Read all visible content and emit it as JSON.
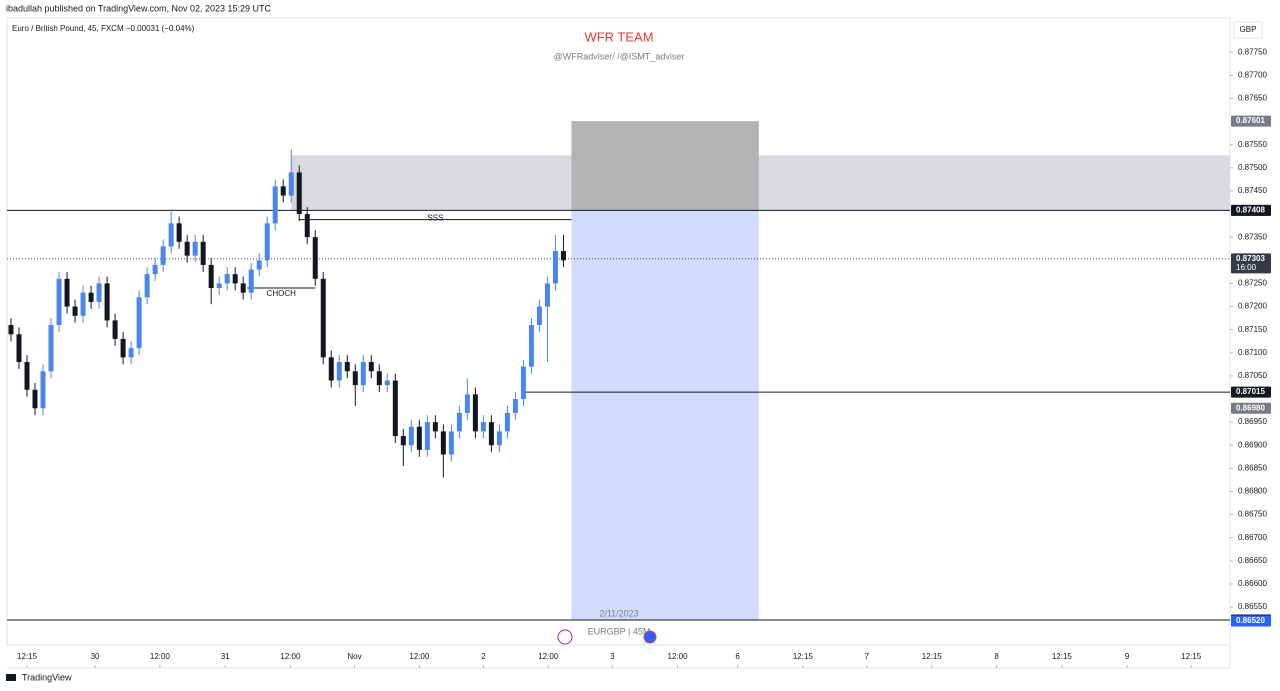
{
  "header": "ibadullah published on TradingView.com, Nov 02, 2023 15:29 UTC",
  "footer": "TradingView",
  "chart_data": {
    "type": "candlestick",
    "symbol": "Euro / British Pound, 45, FXCM  −0.00031 (−0.04%)",
    "title": "WFR TEAM",
    "subtitle": "@WFRadviser/ /@ISMT_adviser",
    "currency": "GBP",
    "up_color": "#4a86e8",
    "down_color": "#131722",
    "xlim": [
      -0.5,
      152.25
    ],
    "ylim": [
      0.86468,
      0.87824
    ],
    "open": [
      0.8716,
      0.8714,
      0.8708,
      0.8702,
      0.8698,
      0.8706,
      0.8716,
      0.8726,
      0.872,
      0.8718,
      0.8723,
      0.8721,
      0.8725,
      0.8717,
      0.8713,
      0.8709,
      0.8711,
      0.8722,
      0.8727,
      0.8729,
      0.8733,
      0.8738,
      0.8734,
      0.8731,
      0.8734,
      0.8729,
      0.8724,
      0.8725,
      0.8727,
      0.8725,
      0.8723,
      0.8728,
      0.873,
      0.8738,
      0.8746,
      0.8744,
      0.8749,
      0.874,
      0.8735,
      0.8726,
      0.8709,
      0.8704,
      0.8708,
      0.8706,
      0.8703,
      0.8708,
      0.8706,
      0.8703,
      0.8704,
      0.8692,
      0.869,
      0.8694,
      0.8689,
      0.8695,
      0.8693,
      0.8688,
      0.8693,
      0.8697,
      0.8701,
      0.8693,
      0.8695,
      0.869,
      0.8693,
      0.8697,
      0.87,
      0.8707,
      0.8716,
      0.872,
      0.8725,
      0.8732
    ],
    "high": [
      0.87175,
      0.87155,
      0.87095,
      0.87035,
      0.87075,
      0.87175,
      0.87275,
      0.87275,
      0.87215,
      0.87245,
      0.87245,
      0.87265,
      0.87265,
      0.87185,
      0.87145,
      0.87125,
      0.87235,
      0.87285,
      0.87305,
      0.87345,
      0.8741,
      0.87395,
      0.87355,
      0.87355,
      0.87355,
      0.87305,
      0.87265,
      0.87285,
      0.87285,
      0.87265,
      0.87295,
      0.87315,
      0.87395,
      0.87475,
      0.87475,
      0.8754,
      0.87505,
      0.87415,
      0.87365,
      0.87275,
      0.87105,
      0.87095,
      0.87095,
      0.87075,
      0.87095,
      0.87095,
      0.87075,
      0.87055,
      0.87055,
      0.86935,
      0.86955,
      0.86955,
      0.86965,
      0.86965,
      0.86945,
      0.86945,
      0.86985,
      0.87045,
      0.87025,
      0.86965,
      0.86965,
      0.86945,
      0.86985,
      0.87015,
      0.87085,
      0.87175,
      0.87215,
      0.87265,
      0.87355,
      0.87355
    ],
    "low": [
      0.87125,
      0.87065,
      0.87005,
      0.86965,
      0.86965,
      0.87045,
      0.87145,
      0.87185,
      0.87165,
      0.87165,
      0.87195,
      0.87195,
      0.87155,
      0.87115,
      0.87075,
      0.87075,
      0.87095,
      0.87205,
      0.87255,
      0.87275,
      0.87315,
      0.87325,
      0.87295,
      0.87295,
      0.87275,
      0.87205,
      0.87225,
      0.87235,
      0.87235,
      0.87215,
      0.87215,
      0.87265,
      0.87285,
      0.87365,
      0.87425,
      0.87425,
      0.87385,
      0.87335,
      0.87245,
      0.87075,
      0.87025,
      0.87025,
      0.87045,
      0.86985,
      0.87015,
      0.87045,
      0.87015,
      0.87015,
      0.86905,
      0.86855,
      0.86885,
      0.86875,
      0.86875,
      0.86915,
      0.8683,
      0.86865,
      0.86915,
      0.86955,
      0.86915,
      0.86915,
      0.86885,
      0.86885,
      0.86915,
      0.86955,
      0.86985,
      0.87055,
      0.87145,
      0.8708,
      0.87235,
      0.87285
    ],
    "close": [
      0.8714,
      0.8708,
      0.8702,
      0.8698,
      0.8706,
      0.8716,
      0.8726,
      0.872,
      0.8718,
      0.8723,
      0.8721,
      0.8725,
      0.8717,
      0.8713,
      0.8709,
      0.8711,
      0.8722,
      0.8727,
      0.8729,
      0.8733,
      0.8738,
      0.8734,
      0.8731,
      0.8734,
      0.8729,
      0.8724,
      0.8725,
      0.8727,
      0.8725,
      0.8723,
      0.8728,
      0.873,
      0.8738,
      0.8746,
      0.8744,
      0.8749,
      0.874,
      0.8735,
      0.8726,
      0.8709,
      0.8704,
      0.8708,
      0.8706,
      0.8703,
      0.8708,
      0.8706,
      0.8703,
      0.8704,
      0.8692,
      0.869,
      0.8694,
      0.8689,
      0.8695,
      0.8693,
      0.8688,
      0.8693,
      0.8697,
      0.8701,
      0.8693,
      0.8695,
      0.869,
      0.8693,
      0.8697,
      0.87,
      0.8707,
      0.8716,
      0.872,
      0.8725,
      0.8732,
      0.873
    ],
    "yticks": [
      {
        "value": 0.8775,
        "label": "0.87750"
      },
      {
        "value": 0.877,
        "label": "0.87700"
      },
      {
        "value": 0.8765,
        "label": "0.87650"
      },
      {
        "value": 0.8755,
        "label": "0.87550"
      },
      {
        "value": 0.875,
        "label": "0.87500"
      },
      {
        "value": 0.8745,
        "label": "0.87450"
      },
      {
        "value": 0.8735,
        "label": "0.87350"
      },
      {
        "value": 0.8725,
        "label": "0.87250"
      },
      {
        "value": 0.872,
        "label": "0.87200"
      },
      {
        "value": 0.8715,
        "label": "0.87150"
      },
      {
        "value": 0.871,
        "label": "0.87100"
      },
      {
        "value": 0.8705,
        "label": "0.87050"
      },
      {
        "value": 0.8695,
        "label": "0.86950"
      },
      {
        "value": 0.869,
        "label": "0.86900"
      },
      {
        "value": 0.8685,
        "label": "0.86850"
      },
      {
        "value": 0.868,
        "label": "0.86800"
      },
      {
        "value": 0.8675,
        "label": "0.86750"
      },
      {
        "value": 0.867,
        "label": "0.86700"
      },
      {
        "value": 0.8665,
        "label": "0.86650"
      },
      {
        "value": 0.866,
        "label": "0.86600"
      },
      {
        "value": 0.8655,
        "label": "0.86550"
      }
    ],
    "xticks": [
      {
        "value": 2,
        "label": "12:15"
      },
      {
        "value": 10.5,
        "label": "30"
      },
      {
        "value": 18.6,
        "label": "12:00"
      },
      {
        "value": 26.75,
        "label": "31"
      },
      {
        "value": 34.9,
        "label": "12:00"
      },
      {
        "value": 42.9,
        "label": "Nov"
      },
      {
        "value": 51,
        "label": "12:00"
      },
      {
        "value": 59,
        "label": "2"
      },
      {
        "value": 67.1,
        "label": "12:00"
      },
      {
        "value": 75.1,
        "label": "3"
      },
      {
        "value": 83.25,
        "label": "12:00"
      },
      {
        "value": 90.75,
        "label": "6"
      },
      {
        "value": 98.9,
        "label": "12:15"
      },
      {
        "value": 106.9,
        "label": "7"
      },
      {
        "value": 115,
        "label": "12:15"
      },
      {
        "value": 123.1,
        "label": "8"
      },
      {
        "value": 131.25,
        "label": "12:15"
      },
      {
        "value": 139.4,
        "label": "9"
      },
      {
        "value": 147.4,
        "label": "12:15"
      }
    ],
    "zones": [
      {
        "low": 0.87408,
        "high": 0.87527,
        "from": 35,
        "to": 152.25,
        "color": "#d9dadf"
      },
      {
        "low": 0.87408,
        "high": 0.87601,
        "from": 70,
        "to": 93.4,
        "color": "#b3b3b3"
      },
      {
        "low": 0.86522,
        "high": 0.87408,
        "from": 70,
        "to": 93.4,
        "color": "#cfdcfb"
      }
    ],
    "levels": [
      {
        "price": 0.87408,
        "from": -0.5,
        "to": 152.25,
        "style": "solid"
      },
      {
        "price": 0.87303,
        "from": -0.5,
        "to": 152.25,
        "style": "dotted"
      },
      {
        "price": 0.87015,
        "from": 64,
        "to": 152.25,
        "style": "solid"
      },
      {
        "price": 0.86522,
        "from": -0.5,
        "to": 152.25,
        "style": "solid"
      },
      {
        "price": 0.87388,
        "from": 36,
        "to": 70,
        "style": "solid",
        "text": "SSS"
      },
      {
        "price": 0.8724,
        "from": 29.5,
        "to": 38,
        "style": "solid",
        "text": "CHOCH"
      }
    ],
    "price_tags": [
      {
        "value": 0.87601,
        "label": "0.87601",
        "color": "#787b86"
      },
      {
        "value": 0.87408,
        "label": "0.87408",
        "color": "#787b86"
      },
      {
        "value": 0.87408,
        "label": "0.87408",
        "color": "#131722"
      },
      {
        "value": 0.87303,
        "label": "0.87303",
        "color": "#363a45",
        "time": "16:00"
      },
      {
        "value": 0.87015,
        "label": "0.87015",
        "color": "#131722"
      },
      {
        "value": 0.8698,
        "label": "0.86980",
        "color": "#787b86"
      },
      {
        "value": 0.86522,
        "label": "0.86522",
        "color": "#131722"
      },
      {
        "value": 0.8652,
        "label": "0.86520",
        "color": "#2962ff"
      }
    ],
    "date_label": "2/11/2023",
    "watermark": "EURGBP | 45M"
  }
}
